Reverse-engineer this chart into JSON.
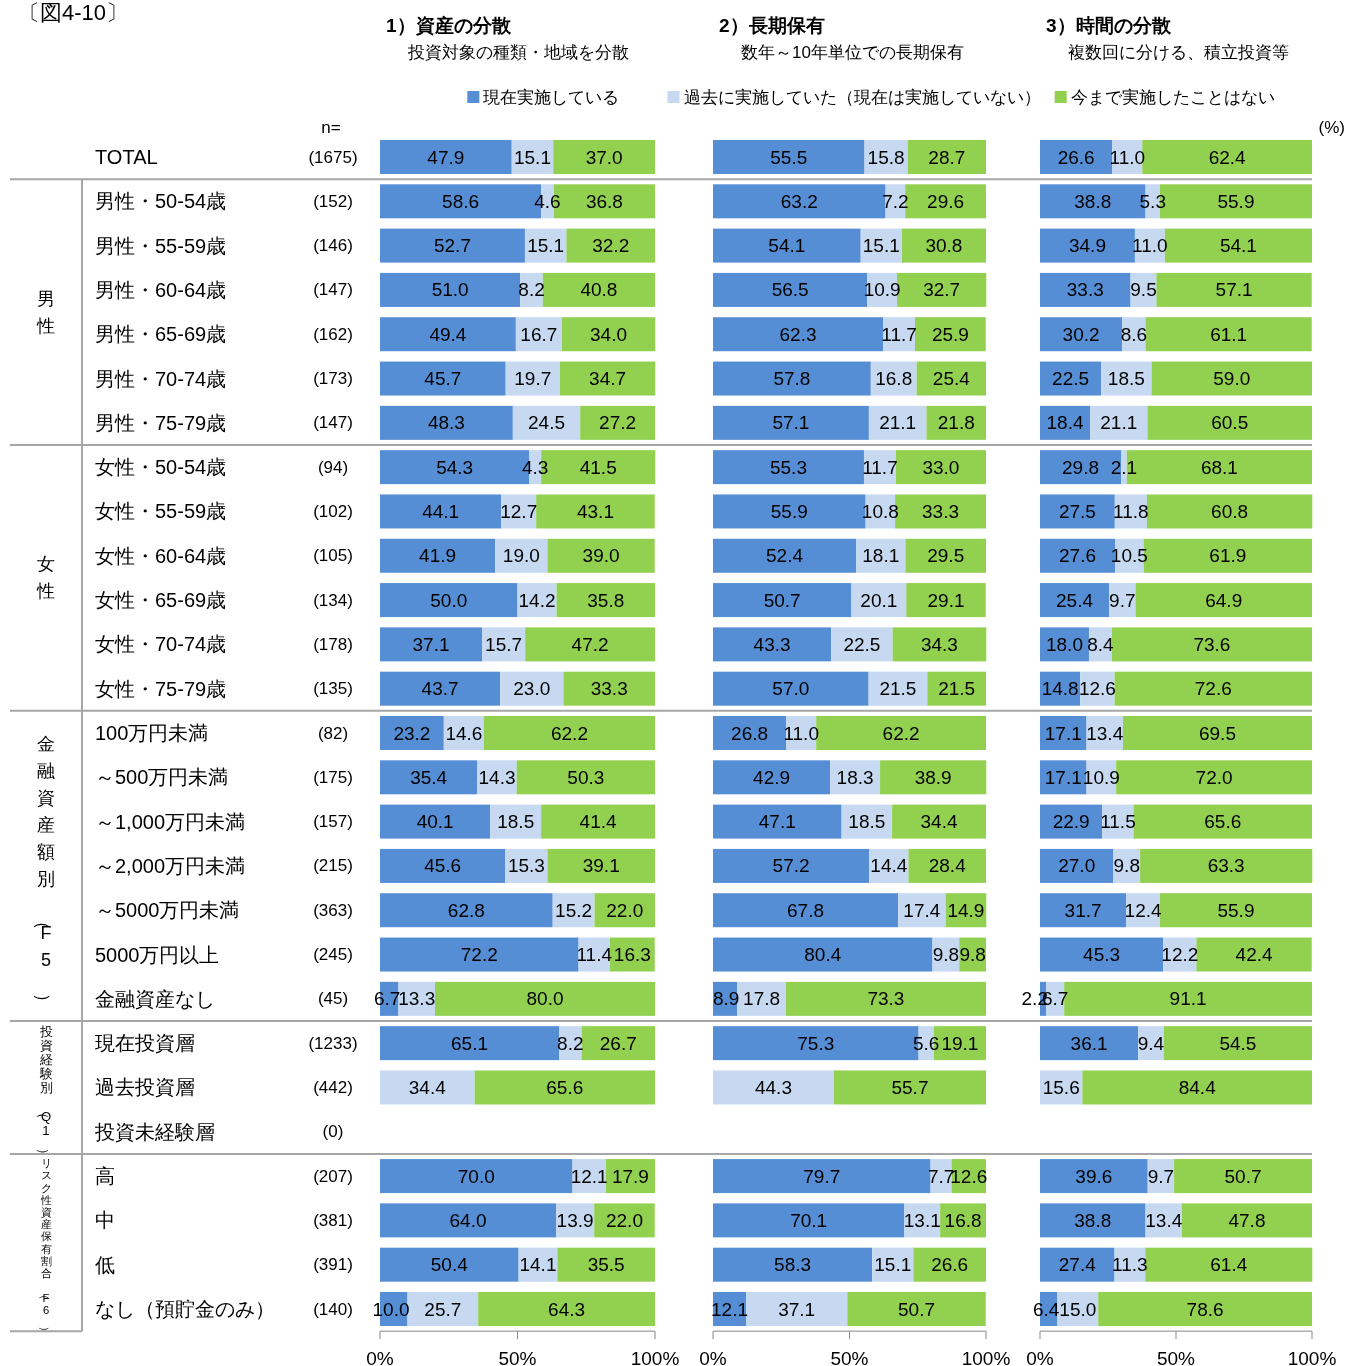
{
  "chart_data": [
    {
      "type": "bar",
      "orientation": "horizontal",
      "stacked": true,
      "title": "1）資産の分散",
      "subtitle": "投資対象の種類・地域を分散",
      "y2label": "n=",
      "annotations": [
        "〔図4-10〕",
        "男性",
        "女性",
        "金融資産額別（F5）",
        "投資経験別（Q1）",
        "リスク性資産保有割合（F6）"
      ],
      "data_labels": true,
      "categories": [
        "TOTAL",
        "男性・50-54歳",
        "男性・55-59歳",
        "男性・60-64歳",
        "男性・65-69歳",
        "男性・70-74歳",
        "男性・75-79歳",
        "女性・50-54歳",
        "女性・55-59歳",
        "女性・60-64歳",
        "女性・65-69歳",
        "女性・70-74歳",
        "女性・75-79歳",
        "100万円未満",
        "～500万円未満",
        "～1,000万円未満",
        "～2,000万円未満",
        "～5000万円未満",
        "5000万円以上",
        "金融資産なし",
        "現在投資層",
        "過去投資層",
        "投資未経験層",
        "高",
        "中",
        "低",
        "なし（預貯金のみ）"
      ],
      "y2_categories": [
        "(1675)",
        "(152)",
        "(146)",
        "(147)",
        "(162)",
        "(173)",
        "(147)",
        "(94)",
        "(102)",
        "(105)",
        "(134)",
        "(178)",
        "(135)",
        "(82)",
        "(175)",
        "(157)",
        "(215)",
        "(363)",
        "(245)",
        "(45)",
        "(1233)",
        "(442)",
        "(0)",
        "(207)",
        "(381)",
        "(391)",
        "(140)"
      ],
      "series": [
        {
          "name": "現在実施している",
          "color": "#558ed5",
          "values": [
            47.9,
            58.6,
            52.7,
            51.0,
            49.4,
            45.7,
            48.3,
            54.3,
            44.1,
            41.9,
            50.0,
            37.1,
            43.7,
            23.2,
            35.4,
            40.1,
            45.6,
            62.8,
            72.2,
            6.7,
            65.1,
            null,
            null,
            70.0,
            64.0,
            50.4,
            10.0
          ],
          "value_labels": [
            "47.9",
            "58.6",
            "52.7",
            "51.0",
            "49.4",
            "45.7",
            "48.3",
            "54.3",
            "44.1",
            "41.9",
            "50.0",
            "37.1",
            "43.7",
            "23.2",
            "35.4",
            "40.1",
            "45.6",
            "62.8",
            "72.2",
            "6.7",
            "65.1",
            null,
            null,
            "70.0",
            "64.0",
            "50.4",
            "10.0"
          ]
        },
        {
          "name": "過去に実施していた（現在は実施していない）",
          "color": "#c6d9f1",
          "values": [
            15.1,
            4.6,
            15.1,
            8.2,
            16.7,
            19.7,
            24.5,
            4.3,
            12.7,
            19.0,
            14.2,
            15.7,
            23.0,
            14.6,
            14.3,
            18.5,
            15.3,
            15.2,
            11.4,
            13.3,
            8.2,
            34.4,
            null,
            12.1,
            13.9,
            14.1,
            25.7
          ],
          "value_labels": [
            "15.1",
            "4.6",
            "15.1",
            "8.2",
            "16.7",
            "19.7",
            "24.5",
            "4.3",
            "12.7",
            "19.0",
            "14.2",
            "15.7",
            "23.0",
            "14.6",
            "14.3",
            "18.5",
            "15.3",
            "15.2",
            "11.4",
            "13.3",
            "8.2",
            "34.4",
            null,
            "12.1",
            "13.9",
            "14.1",
            "25.7"
          ]
        },
        {
          "name": "今まで実施したことはない",
          "color": "#92d050",
          "values": [
            37.0,
            36.8,
            32.2,
            40.8,
            34.0,
            34.7,
            27.2,
            41.5,
            43.1,
            39.0,
            35.8,
            47.2,
            33.3,
            62.2,
            50.3,
            41.4,
            39.1,
            22.0,
            16.3,
            80.0,
            26.7,
            65.6,
            null,
            17.9,
            22.0,
            35.5,
            64.3
          ],
          "value_labels": [
            "37.0",
            "36.8",
            "32.2",
            "40.8",
            "34.0",
            "34.7",
            "27.2",
            "41.5",
            "43.1",
            "39.0",
            "35.8",
            "47.2",
            "33.3",
            "62.2",
            "50.3",
            "41.4",
            "39.1",
            "22.0",
            "16.3",
            "80.0",
            "26.7",
            "65.6",
            null,
            "17.9",
            "22.0",
            "35.5",
            "64.3"
          ]
        }
      ],
      "xlim": [
        0,
        100
      ],
      "xticks": [
        {
          "value": 0,
          "label": "0%"
        },
        {
          "value": 50,
          "label": "50%"
        },
        {
          "value": 100,
          "label": "100%"
        }
      ],
      "legend": "top"
    },
    {
      "type": "bar",
      "orientation": "horizontal",
      "stacked": true,
      "title": "2）長期保有",
      "subtitle": "数年～10年単位での長期保有",
      "tick_labels": "x",
      "data_labels": true,
      "categories": [
        null,
        null,
        null,
        null,
        null,
        null,
        null,
        null,
        null,
        null,
        null,
        null,
        null,
        null,
        null,
        null,
        null,
        null,
        null,
        null,
        null,
        null,
        null,
        null,
        null,
        null,
        null
      ],
      "series": [
        {
          "color": "#558ed5",
          "values": [
            55.5,
            63.2,
            54.1,
            56.5,
            62.3,
            57.8,
            57.1,
            55.3,
            55.9,
            52.4,
            50.7,
            43.3,
            57.0,
            26.8,
            42.9,
            47.1,
            57.2,
            67.8,
            80.4,
            8.9,
            75.3,
            null,
            null,
            79.7,
            70.1,
            58.3,
            12.1
          ],
          "value_labels": [
            "55.5",
            "63.2",
            "54.1",
            "56.5",
            "62.3",
            "57.8",
            "57.1",
            "55.3",
            "55.9",
            "52.4",
            "50.7",
            "43.3",
            "57.0",
            "26.8",
            "42.9",
            "47.1",
            "57.2",
            "67.8",
            "80.4",
            "8.9",
            "75.3",
            null,
            null,
            "79.7",
            "70.1",
            "58.3",
            "12.1"
          ]
        },
        {
          "color": "#c6d9f1",
          "values": [
            15.8,
            7.2,
            15.1,
            10.9,
            11.7,
            16.8,
            21.1,
            11.7,
            10.8,
            18.1,
            20.1,
            22.5,
            21.5,
            11.0,
            18.3,
            18.5,
            14.4,
            17.4,
            9.8,
            17.8,
            5.6,
            44.3,
            null,
            7.7,
            13.1,
            15.1,
            37.1
          ],
          "value_labels": [
            "15.8",
            "7.2",
            "15.1",
            "10.9",
            "11.7",
            "16.8",
            "21.1",
            "11.7",
            "10.8",
            "18.1",
            "20.1",
            "22.5",
            "21.5",
            "11.0",
            "18.3",
            "18.5",
            "14.4",
            "17.4",
            "9.8",
            "17.8",
            "5.6",
            "44.3",
            null,
            "7.7",
            "13.1",
            "15.1",
            "37.1"
          ]
        },
        {
          "color": "#92d050",
          "values": [
            28.7,
            29.6,
            30.8,
            32.7,
            25.9,
            25.4,
            21.8,
            33.0,
            33.3,
            29.5,
            29.1,
            34.3,
            21.5,
            62.2,
            38.9,
            34.4,
            28.4,
            14.9,
            9.8,
            73.3,
            19.1,
            55.7,
            null,
            12.6,
            16.8,
            26.6,
            50.7
          ],
          "value_labels": [
            "28.7",
            "29.6",
            "30.8",
            "32.7",
            "25.9",
            "25.4",
            "21.8",
            "33.0",
            "33.3",
            "29.5",
            "29.1",
            "34.3",
            "21.5",
            "62.2",
            "38.9",
            "34.4",
            "28.4",
            "14.9",
            "9.8",
            "73.3",
            "19.1",
            "55.7",
            null,
            "12.6",
            "16.8",
            "26.6",
            "50.7"
          ]
        }
      ],
      "xlim": [
        0,
        100
      ],
      "xticks": [
        {
          "value": 0,
          "label": "0%"
        },
        {
          "value": 50,
          "label": "50%"
        },
        {
          "value": 100,
          "label": "100%"
        }
      ]
    },
    {
      "type": "bar",
      "orientation": "horizontal",
      "stacked": true,
      "title": "3）時間の分散",
      "subtitle": "複数回に分ける、積立投資等",
      "tick_labels": "x",
      "annotations": [
        "(%)"
      ],
      "data_labels": true,
      "categories": [
        null,
        null,
        null,
        null,
        null,
        null,
        null,
        null,
        null,
        null,
        null,
        null,
        null,
        null,
        null,
        null,
        null,
        null,
        null,
        null,
        null,
        null,
        null,
        null,
        null,
        null,
        null
      ],
      "series": [
        {
          "color": "#558ed5",
          "values": [
            26.6,
            38.8,
            34.9,
            33.3,
            30.2,
            22.5,
            18.4,
            29.8,
            27.5,
            27.6,
            25.4,
            18.0,
            14.8,
            17.1,
            17.1,
            22.9,
            27.0,
            31.7,
            45.3,
            2.2,
            36.1,
            null,
            null,
            39.6,
            38.8,
            27.4,
            6.4
          ],
          "value_labels": [
            "26.6",
            "38.8",
            "34.9",
            "33.3",
            "30.2",
            "22.5",
            "18.4",
            "29.8",
            "27.5",
            "27.6",
            "25.4",
            "18.0",
            "14.8",
            "17.1",
            "17.1",
            "22.9",
            "27.0",
            "31.7",
            "45.3",
            "2.2",
            "36.1",
            null,
            null,
            "39.6",
            "38.8",
            "27.4",
            "6.4"
          ]
        },
        {
          "color": "#c6d9f1",
          "values": [
            11.0,
            5.3,
            11.0,
            9.5,
            8.6,
            18.5,
            21.1,
            2.1,
            11.8,
            10.5,
            9.7,
            8.4,
            12.6,
            13.4,
            10.9,
            11.5,
            9.8,
            12.4,
            12.2,
            6.7,
            9.4,
            15.6,
            null,
            9.7,
            13.4,
            11.3,
            15.0
          ],
          "value_labels": [
            "11.0",
            "5.3",
            "11.0",
            "9.5",
            "8.6",
            "18.5",
            "21.1",
            "2.1",
            "11.8",
            "10.5",
            "9.7",
            "8.4",
            "12.6",
            "13.4",
            "10.9",
            "11.5",
            "9.8",
            "12.4",
            "12.2",
            "6.7",
            "9.4",
            "15.6",
            null,
            "9.7",
            "13.4",
            "11.3",
            "15.0"
          ]
        },
        {
          "color": "#92d050",
          "values": [
            62.4,
            55.9,
            54.1,
            57.1,
            61.1,
            59.0,
            60.5,
            68.1,
            60.8,
            61.9,
            64.9,
            73.6,
            72.6,
            69.5,
            72.0,
            65.6,
            63.3,
            55.9,
            42.4,
            91.1,
            54.5,
            84.4,
            null,
            50.7,
            47.8,
            61.4,
            78.6
          ],
          "value_labels": [
            "62.4",
            "55.9",
            "54.1",
            "57.1",
            "61.1",
            "59.0",
            "60.5",
            "68.1",
            "60.8",
            "61.9",
            "64.9",
            "73.6",
            "72.6",
            "69.5",
            "72.0",
            "65.6",
            "63.3",
            "55.9",
            "42.4",
            "91.1",
            "54.5",
            "84.4",
            null,
            "50.7",
            "47.8",
            "61.4",
            "78.6"
          ]
        }
      ],
      "xlim": [
        0,
        100
      ],
      "xticks": [
        {
          "value": 0,
          "label": "0%"
        },
        {
          "value": 50,
          "label": "50%"
        },
        {
          "value": 100,
          "label": "100%"
        }
      ]
    }
  ]
}
